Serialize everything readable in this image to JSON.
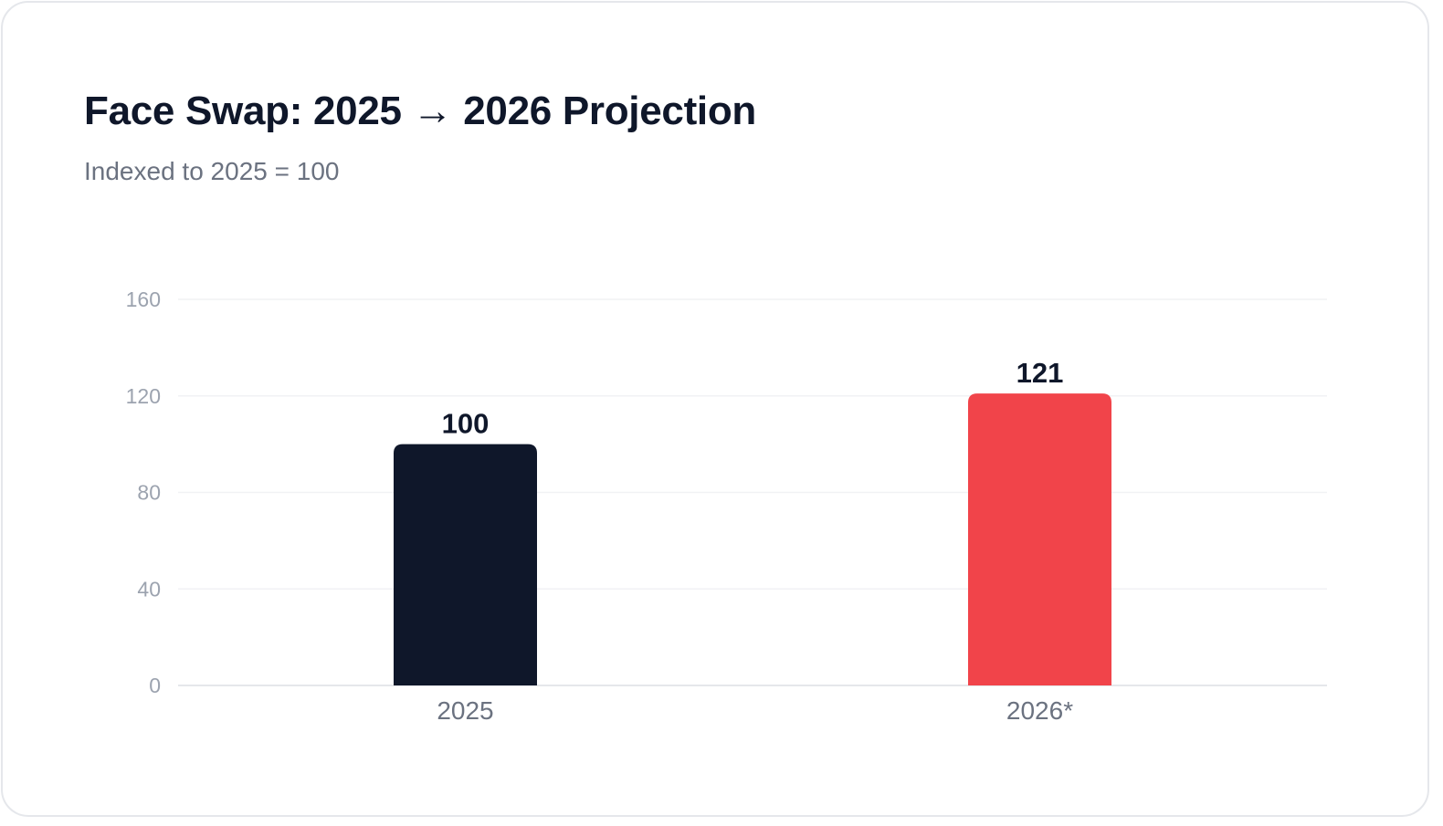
{
  "header": {
    "title": "Face Swap: 2025 → 2026 Projection",
    "subtitle": "Indexed to 2025 = 100"
  },
  "chart_data": {
    "type": "bar",
    "title": "Face Swap: 2025 → 2026 Projection",
    "subtitle": "Indexed to 2025 = 100",
    "xlabel": "",
    "ylabel": "",
    "categories": [
      "2025",
      "2026*"
    ],
    "values": [
      100,
      121
    ],
    "data_labels": [
      "100",
      "121"
    ],
    "colors": [
      "#0f172a",
      "#f1444a"
    ],
    "ylim": [
      0,
      160
    ],
    "yticks": [
      0,
      40,
      80,
      120,
      160
    ],
    "grid": true,
    "legend": "none"
  }
}
